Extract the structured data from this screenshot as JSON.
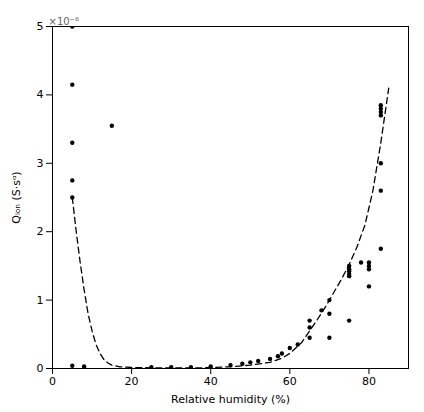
{
  "chart_data": {
    "type": "scatter",
    "xlabel": "Relative humidity (%)",
    "ylabel": "Qᵢₒₙ (S·sᵅ)",
    "annotations": [
      "×10⁻⁶"
    ],
    "xlim": [
      0,
      90
    ],
    "ylim": [
      0,
      5e-06
    ],
    "xticks": [
      0,
      20,
      40,
      60,
      80
    ],
    "yticks": [
      0,
      {
        "value": 1e-06,
        "label": "1"
      },
      {
        "value": 2e-06,
        "label": "2"
      },
      {
        "value": 3e-06,
        "label": "3"
      },
      {
        "value": 4e-06,
        "label": "4"
      },
      {
        "value": 5e-06,
        "label": "5"
      }
    ],
    "grid": false,
    "series": [
      {
        "type": "line",
        "line_style": "dashed",
        "color": "#000000",
        "x": [
          5,
          6,
          7,
          8,
          9,
          10,
          11,
          12,
          13,
          14,
          15,
          17,
          20,
          25,
          30,
          38,
          45,
          50,
          55,
          58,
          60,
          63,
          65,
          67,
          69,
          71,
          73,
          75,
          77,
          79,
          81,
          83,
          85
        ],
        "values": [
          2.5e-06,
          2e-06,
          1.55e-06,
          1.15e-06,
          8e-07,
          5.5e-07,
          3.5e-07,
          2.2e-07,
          1.3e-07,
          8e-08,
          5e-08,
          2.5e-08,
          1.5e-08,
          1e-08,
          1e-08,
          1e-08,
          2.5e-08,
          5e-08,
          9e-08,
          1.5e-07,
          2.2e-07,
          3.8e-07,
          5.5e-07,
          7.2e-07,
          9e-07,
          1.1e-06,
          1.3e-06,
          1.52e-06,
          1.78e-06,
          2.1e-06,
          2.6e-06,
          3.3e-06,
          4.1e-06
        ]
      },
      {
        "type": "scatter",
        "marker": "circle",
        "color": "#000000",
        "x": [
          5,
          5,
          5,
          5,
          5,
          5,
          8,
          15,
          25,
          30,
          35,
          40,
          45,
          48,
          50,
          52,
          55,
          57,
          58,
          60,
          62,
          65,
          65,
          65,
          68,
          70,
          70,
          70,
          75,
          75,
          75,
          75,
          75,
          75,
          78,
          80,
          80,
          80,
          80,
          83,
          83,
          83,
          83,
          83,
          83,
          83
        ],
        "values": [
          5e-06,
          4.15e-06,
          3.3e-06,
          2.75e-06,
          2.5e-06,
          4e-08,
          3e-08,
          3.55e-06,
          2e-08,
          2e-08,
          2e-08,
          3e-08,
          5e-08,
          7e-08,
          9e-08,
          1.1e-07,
          1.4e-07,
          1.8e-07,
          2.2e-07,
          3e-07,
          3.5e-07,
          7e-07,
          6e-07,
          4.5e-07,
          8.5e-07,
          1e-06,
          8e-07,
          4.5e-07,
          1.5e-06,
          1.45e-06,
          1.42e-06,
          1.38e-06,
          1.35e-06,
          7e-07,
          1.55e-06,
          1.55e-06,
          1.5e-06,
          1.45e-06,
          1.2e-06,
          3.85e-06,
          3.8e-06,
          3.75e-06,
          3.7e-06,
          3e-06,
          2.6e-06,
          1.75e-06
        ]
      }
    ]
  }
}
